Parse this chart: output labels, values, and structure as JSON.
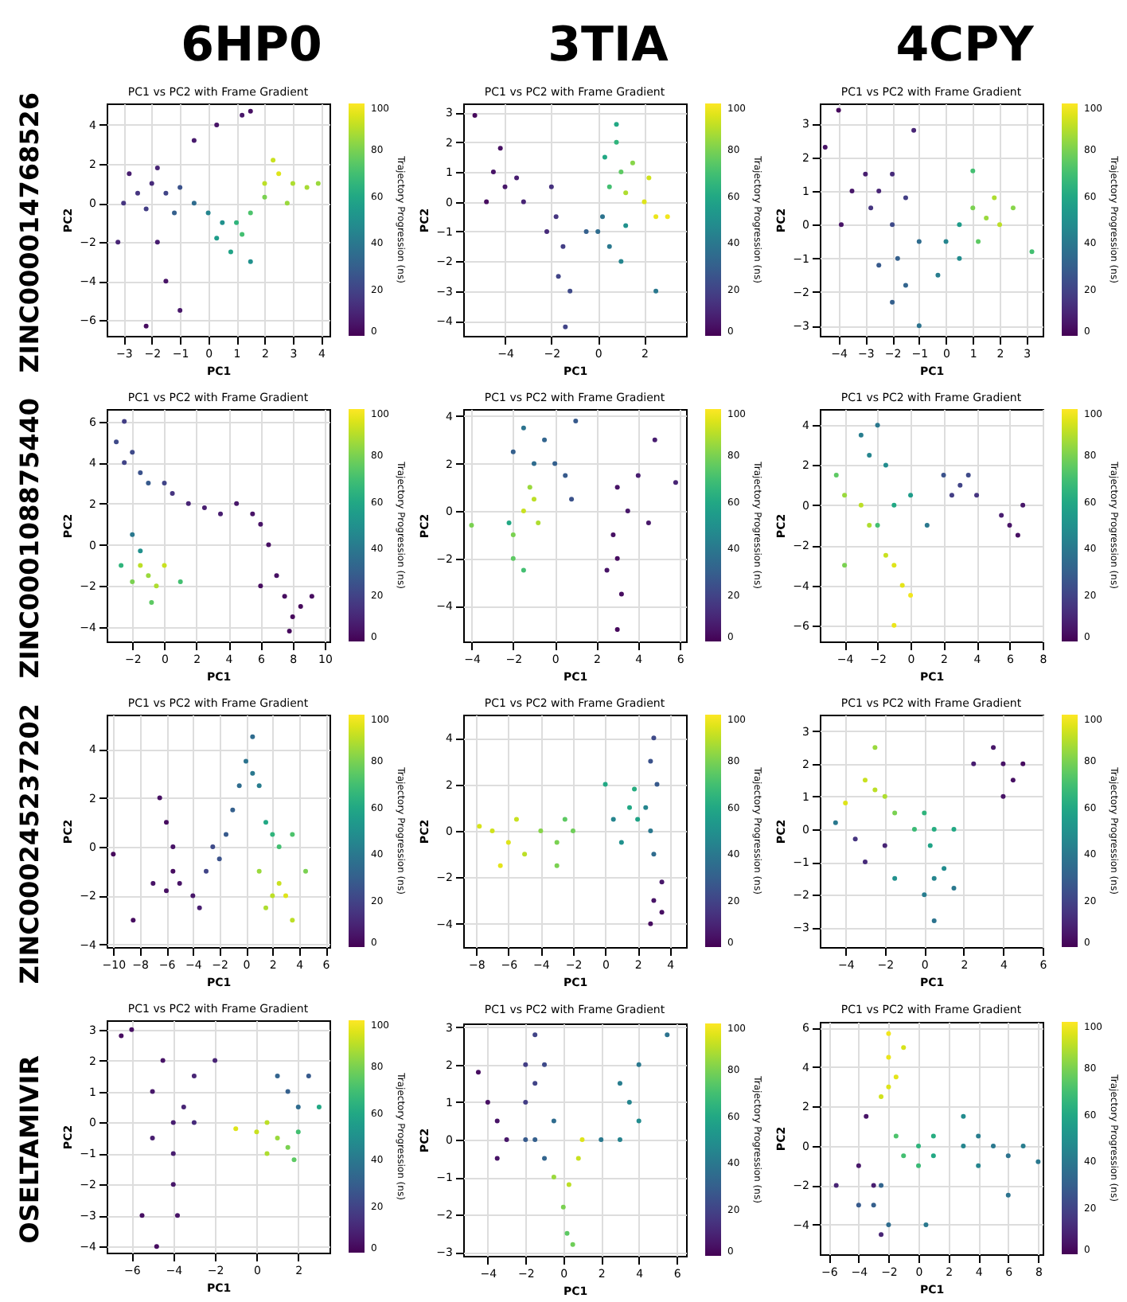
{
  "chart_data": [
    {
      "type": "scatter",
      "title": "PC1 vs PC2 with Frame Gradient",
      "xlabel": "PC1",
      "ylabel": "PC2",
      "clabel": "Trajectory Progression (ns)",
      "annotations": [
        "6HP0",
        "ZINC000014768526"
      ],
      "clim": [
        0,
        100
      ],
      "cticks": [
        0,
        20,
        40,
        60,
        80,
        100
      ],
      "grid": true,
      "marker": "circle",
      "xlim": [
        -3.6,
        4.3
      ],
      "xticks": [
        -3,
        -2,
        -1,
        0,
        1,
        2,
        3,
        4
      ],
      "ylim": [
        -6.8,
        5.1
      ],
      "yticks": [
        -6,
        -4,
        -2,
        0,
        2,
        4
      ],
      "x": [
        -2.5,
        -2,
        -1.5,
        -2.2,
        -1,
        -1.8,
        -3,
        -2.8,
        -1.2,
        -0.5,
        0,
        0.5,
        0.3,
        1,
        1.2,
        1.5,
        0.8,
        2,
        2.5,
        2.3,
        3,
        2.8,
        3.5,
        2,
        -1.5,
        -2.2,
        -1,
        -1.8,
        0.3,
        1.5,
        1.2,
        -0.5,
        3.9,
        1.5,
        -3.2
      ],
      "values": [
        0.5,
        1,
        0.5,
        -0.3,
        0.8,
        1.8,
        0,
        1.5,
        -0.5,
        0,
        -0.5,
        -1,
        -1.8,
        -1,
        -1.6,
        -0.5,
        -2.5,
        1,
        1.5,
        2.2,
        1,
        0,
        0.8,
        0.3,
        -4,
        -6.3,
        -5.5,
        -2,
        4,
        4.7,
        4.5,
        3.2,
        1,
        -3,
        -2
      ],
      "cvalues": [
        15,
        12,
        20,
        18,
        25,
        10,
        15,
        8,
        30,
        35,
        45,
        50,
        55,
        65,
        70,
        72,
        58,
        90,
        95,
        92,
        88,
        85,
        87,
        80,
        5,
        3,
        6,
        8,
        5,
        4,
        6,
        7,
        85,
        50,
        10
      ]
    },
    {
      "type": "scatter",
      "title": "PC1 vs PC2 with Frame Gradient",
      "xlabel": "PC1",
      "ylabel": "PC2",
      "clabel": "Trajectory Progression (ns)",
      "annotations": [
        "3TIA"
      ],
      "clim": [
        0,
        100
      ],
      "cticks": [
        0,
        20,
        40,
        60,
        80,
        100
      ],
      "grid": true,
      "marker": "circle",
      "xlim": [
        -5.8,
        3.8
      ],
      "xticks": [
        -4,
        -2,
        0,
        2
      ],
      "ylim": [
        -4.5,
        3.3
      ],
      "yticks": [
        -4,
        -3,
        -2,
        -1,
        0,
        1,
        2,
        3
      ],
      "x": [
        -4.5,
        -4,
        -3.5,
        -4.2,
        -3.2,
        -5.3,
        -4.8,
        -1.8,
        -2,
        -1.5,
        -1.7,
        -1.2,
        -1.4,
        -2.2,
        0,
        0.5,
        0.2,
        1,
        1.2,
        0.3,
        0.8,
        1,
        0.5,
        1.5,
        1.2,
        2,
        2.5,
        2.2,
        3,
        0.8,
        -0.5,
        2.5
      ],
      "values": [
        1,
        0.5,
        0.8,
        1.8,
        0,
        2.9,
        0,
        -0.5,
        0.5,
        -1.5,
        -2.5,
        -3,
        -4.2,
        -1,
        -1,
        -1.5,
        -0.5,
        -2,
        -0.8,
        1.5,
        2,
        1,
        0.5,
        1.3,
        0.3,
        0,
        -0.5,
        0.8,
        -0.5,
        2.6,
        -1,
        -3
      ],
      "cvalues": [
        5,
        6,
        8,
        4,
        10,
        2,
        3,
        15,
        14,
        18,
        20,
        22,
        20,
        12,
        35,
        40,
        38,
        45,
        50,
        60,
        65,
        75,
        70,
        82,
        88,
        95,
        97,
        93,
        98,
        60,
        30,
        40
      ]
    },
    {
      "type": "scatter",
      "title": "PC1 vs PC2 with Frame Gradient",
      "xlabel": "PC1",
      "ylabel": "PC2",
      "clabel": "Trajectory Progression (ns)",
      "annotations": [
        "4CPY"
      ],
      "clim": [
        0,
        100
      ],
      "cticks": [
        0,
        20,
        40,
        60,
        80,
        100
      ],
      "grid": true,
      "marker": "circle",
      "xlim": [
        -4.7,
        3.6
      ],
      "xticks": [
        -4,
        -3,
        -2,
        -1,
        0,
        1,
        2,
        3
      ],
      "ylim": [
        -3.3,
        3.6
      ],
      "yticks": [
        -3,
        -2,
        -1,
        0,
        1,
        2,
        3
      ],
      "x": [
        -4,
        -4.5,
        -3,
        -2.5,
        -2,
        -3.5,
        -2.8,
        -1.5,
        -1.2,
        -2,
        -1.8,
        -2.5,
        -1.5,
        -1,
        -2,
        0,
        0.5,
        -0.3,
        0.5,
        1.5,
        1,
        2,
        1.8,
        1.2,
        2.5,
        3.2,
        1,
        -1,
        -3.9
      ],
      "values": [
        3.4,
        2.3,
        1.5,
        1,
        1.5,
        1,
        0.5,
        0.8,
        2.8,
        0,
        -1,
        -1.2,
        -1.8,
        -0.5,
        -2.3,
        -0.5,
        -1,
        -1.5,
        0,
        0.2,
        0.5,
        0,
        0.8,
        -0.5,
        0.5,
        -0.8,
        1.6,
        -3,
        0
      ],
      "cvalues": [
        2,
        5,
        8,
        10,
        12,
        6,
        15,
        18,
        10,
        22,
        30,
        28,
        32,
        35,
        30,
        45,
        48,
        42,
        55,
        85,
        80,
        90,
        88,
        75,
        82,
        70,
        70,
        38,
        5
      ]
    },
    {
      "type": "scatter",
      "title": "PC1 vs PC2 with Frame Gradient",
      "xlabel": "PC1",
      "ylabel": "PC2",
      "clabel": "Trajectory Progression (ns)",
      "annotations": [
        "ZINC000108875440"
      ],
      "clim": [
        0,
        100
      ],
      "cticks": [
        0,
        20,
        40,
        60,
        80,
        100
      ],
      "grid": true,
      "marker": "circle",
      "xlim": [
        -3.6,
        10.3
      ],
      "xticks": [
        -2,
        0,
        2,
        4,
        6,
        8,
        10
      ],
      "ylim": [
        -4.7,
        6.6
      ],
      "yticks": [
        -4,
        -2,
        0,
        2,
        4,
        6
      ],
      "x": [
        -2.5,
        -2,
        -1.5,
        -1,
        0,
        0.5,
        -2.5,
        -3,
        1.5,
        2.5,
        3.5,
        4.5,
        5.5,
        6,
        6.5,
        7,
        6,
        7.5,
        8,
        8.5,
        9.2,
        7.8,
        -2,
        -1.5,
        -1,
        -1.5,
        -0.5,
        -2,
        0,
        1,
        -0.8,
        -2.7
      ],
      "values": [
        4,
        4.5,
        3.5,
        3,
        3,
        2.5,
        6,
        5,
        2,
        1.8,
        1.5,
        2,
        1.5,
        1,
        0,
        -1.5,
        -2,
        -2.5,
        -3.5,
        -3,
        -2.5,
        -4.2,
        0.5,
        -0.3,
        -1.5,
        -1,
        -2,
        -1.8,
        -1,
        -1.8,
        -2.8,
        -1
      ],
      "cvalues": [
        20,
        22,
        25,
        28,
        20,
        15,
        18,
        22,
        10,
        8,
        8,
        6,
        5,
        5,
        4,
        4,
        3,
        3,
        2,
        2,
        3,
        2,
        40,
        50,
        85,
        90,
        88,
        80,
        92,
        70,
        75,
        65
      ]
    },
    {
      "type": "scatter",
      "title": "PC1 vs PC2 with Frame Gradient",
      "xlabel": "PC1",
      "ylabel": "PC2",
      "clabel": "Trajectory Progression (ns)",
      "clim": [
        0,
        100
      ],
      "cticks": [
        0,
        20,
        40,
        60,
        80,
        100
      ],
      "grid": true,
      "marker": "circle",
      "xlim": [
        -4.4,
        6.3
      ],
      "xticks": [
        -4,
        -2,
        0,
        2,
        4,
        6
      ],
      "ylim": [
        -5.5,
        4.3
      ],
      "yticks": [
        -4,
        -2,
        0,
        2,
        4
      ],
      "x": [
        -2,
        -1,
        0,
        0.5,
        -1.5,
        -0.5,
        0.8,
        1,
        -1,
        -1.5,
        -0.8,
        -1.2,
        -2,
        -2,
        -1.5,
        -2.2,
        -4,
        3,
        3.5,
        2.8,
        3,
        2.5,
        3.2,
        3,
        4,
        4.5,
        5.8,
        4.8
      ],
      "values": [
        2.5,
        2,
        2,
        1.5,
        3.5,
        3,
        0.5,
        3.8,
        0.5,
        0,
        -0.5,
        1,
        -1,
        -2,
        -2.5,
        -0.5,
        -0.6,
        1,
        0,
        -1,
        -2,
        -2.5,
        -3.5,
        -5,
        1.5,
        -0.5,
        1.2,
        3
      ],
      "cvalues": [
        30,
        35,
        30,
        28,
        38,
        32,
        25,
        28,
        90,
        92,
        88,
        85,
        80,
        75,
        70,
        60,
        80,
        5,
        6,
        4,
        3,
        5,
        3,
        2,
        8,
        6,
        10,
        8
      ]
    },
    {
      "type": "scatter",
      "title": "PC1 vs PC2 with Frame Gradient",
      "xlabel": "PC1",
      "ylabel": "PC2",
      "clabel": "Trajectory Progression (ns)",
      "clim": [
        0,
        100
      ],
      "cticks": [
        0,
        20,
        40,
        60,
        80,
        100
      ],
      "grid": true,
      "marker": "circle",
      "xlim": [
        -5.5,
        8
      ],
      "xticks": [
        -4,
        -2,
        0,
        2,
        4,
        6,
        8
      ],
      "ylim": [
        -6.8,
        4.8
      ],
      "yticks": [
        -6,
        -4,
        -2,
        0,
        2,
        4
      ],
      "x": [
        3,
        2.5,
        3.5,
        4,
        2,
        6,
        5.5,
        6.5,
        6.8,
        -2.5,
        -3,
        -2,
        -1.5,
        -3,
        -4,
        -2.5,
        -1.5,
        -1,
        -0.5,
        0,
        -1,
        -2,
        -1,
        0,
        1,
        -4,
        -4.5
      ],
      "values": [
        1,
        0.5,
        1.5,
        0.5,
        1.5,
        -1,
        -0.5,
        -1.5,
        0,
        2.5,
        3.5,
        4,
        2,
        0,
        0.5,
        -1,
        -2.5,
        -3,
        -4,
        -4.5,
        -6,
        -1,
        0,
        0.5,
        -1,
        -3,
        1.5
      ],
      "cvalues": [
        20,
        18,
        22,
        15,
        25,
        5,
        8,
        4,
        6,
        45,
        42,
        40,
        48,
        90,
        85,
        88,
        92,
        95,
        96,
        98,
        97,
        70,
        60,
        55,
        40,
        80,
        75
      ]
    },
    {
      "type": "scatter",
      "title": "PC1 vs PC2 with Frame Gradient",
      "xlabel": "PC1",
      "ylabel": "PC2",
      "clabel": "Trajectory Progression (ns)",
      "annotations": [
        "ZINC000245237202"
      ],
      "clim": [
        0,
        100
      ],
      "cticks": [
        0,
        20,
        40,
        60,
        80,
        100
      ],
      "grid": true,
      "marker": "circle",
      "xlim": [
        -10.5,
        6.3
      ],
      "xticks": [
        -10,
        -8,
        -6,
        -4,
        -2,
        0,
        2,
        4,
        6
      ],
      "ylim": [
        -4.1,
        5.4
      ],
      "yticks": [
        -4,
        -2,
        0,
        2,
        4
      ],
      "x": [
        -5,
        -6,
        -4,
        -5.5,
        -3.5,
        -7,
        -6,
        -6.5,
        -5.5,
        -10,
        -8.5,
        -2,
        -3,
        -1.5,
        -1,
        -2.5,
        0.5,
        0,
        1,
        0.5,
        -0.5,
        2,
        1.5,
        2.5,
        3.5,
        2,
        2.5,
        1.5,
        3,
        1,
        3.5,
        4.5
      ],
      "values": [
        -1.5,
        -1.8,
        -2,
        -1,
        -2.5,
        -1.5,
        1,
        2,
        0,
        -0.3,
        -3,
        -0.5,
        -1,
        0.5,
        1.5,
        0,
        3,
        3.5,
        2.5,
        4.5,
        2.5,
        0.5,
        1,
        0,
        0.5,
        -2,
        -1.5,
        -2.5,
        -2,
        -1,
        -3,
        -1
      ],
      "cvalues": [
        5,
        4,
        6,
        3,
        8,
        5,
        3,
        4,
        5,
        2,
        3,
        25,
        20,
        28,
        30,
        22,
        40,
        38,
        42,
        35,
        35,
        65,
        60,
        70,
        72,
        90,
        92,
        88,
        95,
        85,
        90,
        80
      ]
    },
    {
      "type": "scatter",
      "title": "PC1 vs PC2 with Frame Gradient",
      "xlabel": "PC1",
      "ylabel": "PC2",
      "clabel": "Trajectory Progression (ns)",
      "clim": [
        0,
        100
      ],
      "cticks": [
        0,
        20,
        40,
        60,
        80,
        100
      ],
      "grid": true,
      "marker": "circle",
      "xlim": [
        -8.8,
        5
      ],
      "xticks": [
        -8,
        -6,
        -4,
        -2,
        0,
        2,
        4
      ],
      "ylim": [
        -5,
        5
      ],
      "yticks": [
        -4,
        -2,
        0,
        2,
        4
      ],
      "x": [
        -6,
        -7,
        -5.5,
        -6.5,
        -5,
        -7.8,
        -3,
        -4,
        -2,
        -3,
        -2.5,
        0,
        1.5,
        2,
        1.8,
        1,
        2.8,
        3,
        2.5,
        2.8,
        3,
        3.2,
        3,
        3.5,
        2.8,
        3.5,
        0.5
      ],
      "values": [
        -0.5,
        0,
        0.5,
        -1.5,
        -1,
        0.2,
        -0.5,
        0,
        0,
        -1.5,
        0.5,
        2,
        1,
        0.5,
        1.8,
        -0.5,
        0,
        -1,
        1,
        3,
        4,
        2,
        -3,
        -3.5,
        -4,
        -2.2,
        0.5
      ],
      "cvalues": [
        95,
        93,
        92,
        96,
        90,
        94,
        80,
        82,
        78,
        80,
        75,
        60,
        60,
        58,
        62,
        50,
        40,
        35,
        45,
        25,
        22,
        28,
        5,
        4,
        3,
        6,
        45
      ]
    },
    {
      "type": "scatter",
      "title": "PC1 vs PC2 with Frame Gradient",
      "xlabel": "PC1",
      "ylabel": "PC2",
      "clabel": "Trajectory Progression (ns)",
      "clim": [
        0,
        100
      ],
      "cticks": [
        0,
        20,
        40,
        60,
        80,
        100
      ],
      "grid": true,
      "marker": "circle",
      "xlim": [
        -5.3,
        6
      ],
      "xticks": [
        -4,
        -2,
        0,
        2,
        4,
        6
      ],
      "ylim": [
        -3.6,
        3.5
      ],
      "yticks": [
        -3,
        -2,
        -1,
        0,
        1,
        2,
        3
      ],
      "x": [
        -2.5,
        -3,
        -2,
        -2.5,
        -4,
        -1.5,
        0,
        0.5,
        0.3,
        1.5,
        -0.5,
        0.5,
        0,
        1,
        1.5,
        0.5,
        -1.5,
        4,
        4.5,
        3.5,
        5,
        4,
        2.5,
        -2,
        -3,
        -3.5,
        -4.5
      ],
      "values": [
        1.2,
        1.5,
        1,
        2.5,
        0.8,
        0.5,
        0.5,
        0,
        -0.5,
        0,
        0,
        -1.5,
        -2,
        -1.2,
        -1.8,
        -2.8,
        -1.5,
        2,
        1.5,
        2.5,
        2,
        1,
        2,
        -0.5,
        -1,
        -0.3,
        0.2
      ],
      "cvalues": [
        90,
        92,
        88,
        85,
        95,
        80,
        65,
        62,
        58,
        60,
        68,
        45,
        42,
        48,
        40,
        38,
        50,
        5,
        4,
        6,
        3,
        5,
        8,
        10,
        12,
        15,
        40
      ]
    },
    {
      "type": "scatter",
      "title": "PC1 vs PC2 with Frame Gradient",
      "xlabel": "PC1",
      "ylabel": "PC2",
      "clabel": "Trajectory Progression (ns)",
      "annotations": [
        "OSELTAMIVIR"
      ],
      "clim": [
        0,
        100
      ],
      "cticks": [
        0,
        20,
        40,
        60,
        80,
        100
      ],
      "grid": true,
      "marker": "circle",
      "xlim": [
        -7.2,
        3.5
      ],
      "xticks": [
        -6,
        -4,
        -2,
        0,
        2
      ],
      "ylim": [
        -4.2,
        3.3
      ],
      "yticks": [
        -4,
        -3,
        -2,
        -1,
        0,
        1,
        2,
        3
      ],
      "x": [
        -4,
        -5,
        -4.5,
        -3.5,
        -4,
        -4,
        -3.8,
        -5.5,
        -4.8,
        -6,
        -6.5,
        -5,
        -3,
        -2,
        -3,
        1.5,
        1,
        2,
        2.5,
        1,
        0,
        -1,
        1.5,
        0.5,
        2,
        1.8,
        3,
        0.5
      ],
      "values": [
        0,
        1,
        2,
        0.5,
        -1,
        -2,
        -3,
        -3,
        -4,
        3,
        2.8,
        -0.5,
        0,
        2,
        1.5,
        1,
        1.5,
        0.5,
        1.5,
        -0.5,
        -0.3,
        -0.2,
        -0.8,
        -1,
        -0.3,
        -1.2,
        0.5,
        0
      ],
      "cvalues": [
        8,
        6,
        5,
        10,
        8,
        6,
        5,
        4,
        3,
        4,
        3,
        8,
        12,
        10,
        10,
        30,
        32,
        35,
        28,
        85,
        92,
        95,
        80,
        88,
        70,
        75,
        60,
        90
      ]
    },
    {
      "type": "scatter",
      "title": "PC1 vs PC2 with Frame Gradient",
      "xlabel": "PC1",
      "ylabel": "PC2",
      "clabel": "Trajectory Progression (ns)",
      "clim": [
        0,
        100
      ],
      "cticks": [
        0,
        20,
        40,
        60,
        80,
        100
      ],
      "grid": true,
      "marker": "circle",
      "xlim": [
        -5.3,
        6.5
      ],
      "xticks": [
        -4,
        -2,
        0,
        2,
        4,
        6
      ],
      "ylim": [
        -3.1,
        3.1
      ],
      "yticks": [
        -3,
        -2,
        -1,
        0,
        1,
        2,
        3
      ],
      "x": [
        -3.5,
        -4,
        -3,
        -3.5,
        -4.5,
        -1.5,
        -2,
        -1,
        -1.5,
        -2,
        -1.5,
        -1,
        -2,
        -0.5,
        3.5,
        3,
        4,
        3,
        4,
        5.5,
        2,
        0.3,
        0.8,
        1,
        0,
        0.2,
        0.5,
        -0.5
      ],
      "values": [
        0.5,
        1,
        0,
        -0.5,
        1.8,
        1.5,
        2,
        2,
        2.8,
        1,
        0,
        -0.5,
        0,
        0.5,
        1,
        1.5,
        0.5,
        0,
        2,
        2.8,
        0,
        -1.2,
        -0.5,
        0,
        -1.8,
        -2.5,
        -2.8,
        -1
      ],
      "cvalues": [
        5,
        4,
        6,
        5,
        3,
        20,
        18,
        22,
        20,
        18,
        30,
        32,
        28,
        35,
        45,
        42,
        48,
        44,
        40,
        38,
        40,
        90,
        92,
        95,
        80,
        75,
        78,
        85
      ]
    },
    {
      "type": "scatter",
      "title": "PC1 vs PC2 with Frame Gradient",
      "xlabel": "PC1",
      "ylabel": "PC2",
      "clabel": "Trajectory Progression (ns)",
      "clim": [
        0,
        100
      ],
      "cticks": [
        0,
        20,
        40,
        60,
        80,
        100
      ],
      "grid": true,
      "marker": "circle",
      "xlim": [
        -6.6,
        8.3
      ],
      "xticks": [
        -6,
        -4,
        -2,
        0,
        2,
        4,
        6,
        8
      ],
      "ylim": [
        -5.5,
        6.3
      ],
      "yticks": [
        -4,
        -2,
        0,
        2,
        4,
        6
      ],
      "x": [
        -2,
        -2.5,
        -1.5,
        -2,
        -1,
        -2,
        -1,
        0,
        -1.5,
        0,
        1,
        1,
        3,
        4,
        5,
        6,
        7,
        3,
        4,
        8,
        -3,
        -2.5,
        -4,
        -2,
        -3,
        -4,
        -3.5,
        -5.5,
        -2.5,
        0.5,
        6
      ],
      "values": [
        3,
        2.5,
        3.5,
        4.5,
        5,
        5.7,
        -0.5,
        0,
        0.5,
        -1,
        -0.5,
        0.5,
        0,
        0.5,
        0,
        -0.5,
        0,
        1.5,
        -1,
        -0.8,
        -3,
        -2,
        -3,
        -4,
        -2,
        -1,
        1.5,
        -2,
        -4.5,
        -4,
        -2.5
      ],
      "cvalues": [
        95,
        93,
        96,
        97,
        94,
        98,
        70,
        65,
        72,
        68,
        60,
        62,
        45,
        42,
        40,
        38,
        42,
        48,
        45,
        40,
        30,
        32,
        28,
        35,
        8,
        6,
        5,
        10,
        10,
        40,
        38
      ]
    }
  ]
}
